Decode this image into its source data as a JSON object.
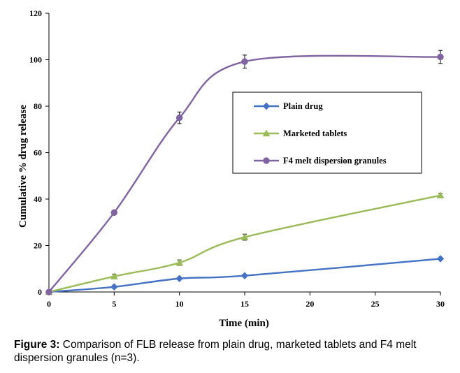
{
  "chart_data": {
    "type": "line",
    "title": "",
    "xlabel": "Time (min)",
    "ylabel": "Cumulative % drug release",
    "xlim": [
      0,
      30
    ],
    "ylim": [
      0,
      120
    ],
    "xticks": [
      0,
      5,
      10,
      15,
      20,
      25,
      30
    ],
    "yticks": [
      0,
      20,
      40,
      60,
      80,
      100,
      120
    ],
    "legend_position": "center-right",
    "series": [
      {
        "name": "Plain drug",
        "color": "#4472C4",
        "marker": "diamond",
        "x": [
          0,
          5,
          10,
          15,
          30
        ],
        "y": [
          0,
          2.2,
          5.8,
          7.0,
          14.3
        ],
        "error": [
          0,
          0,
          0,
          0,
          0
        ]
      },
      {
        "name": "Marketed tablets",
        "color": "#9BBB59",
        "marker": "triangle",
        "x": [
          0,
          5,
          10,
          15,
          30
        ],
        "y": [
          0,
          6.7,
          12.6,
          23.6,
          41.6
        ],
        "error": [
          0,
          1.0,
          1.2,
          1.3,
          0.8
        ]
      },
      {
        "name": "F4 melt dispersion granules",
        "color": "#8064A2",
        "marker": "circle",
        "x": [
          0,
          5,
          10,
          15,
          30
        ],
        "y": [
          0,
          34.2,
          75.0,
          99.2,
          101.2
        ],
        "error": [
          0,
          0.8,
          2.5,
          2.8,
          2.8
        ]
      }
    ]
  },
  "caption": {
    "label": "Figure 3:",
    "text": " Comparison of FLB release from plain drug, marketed tablets and F4 melt dispersion granules (n=3)."
  }
}
